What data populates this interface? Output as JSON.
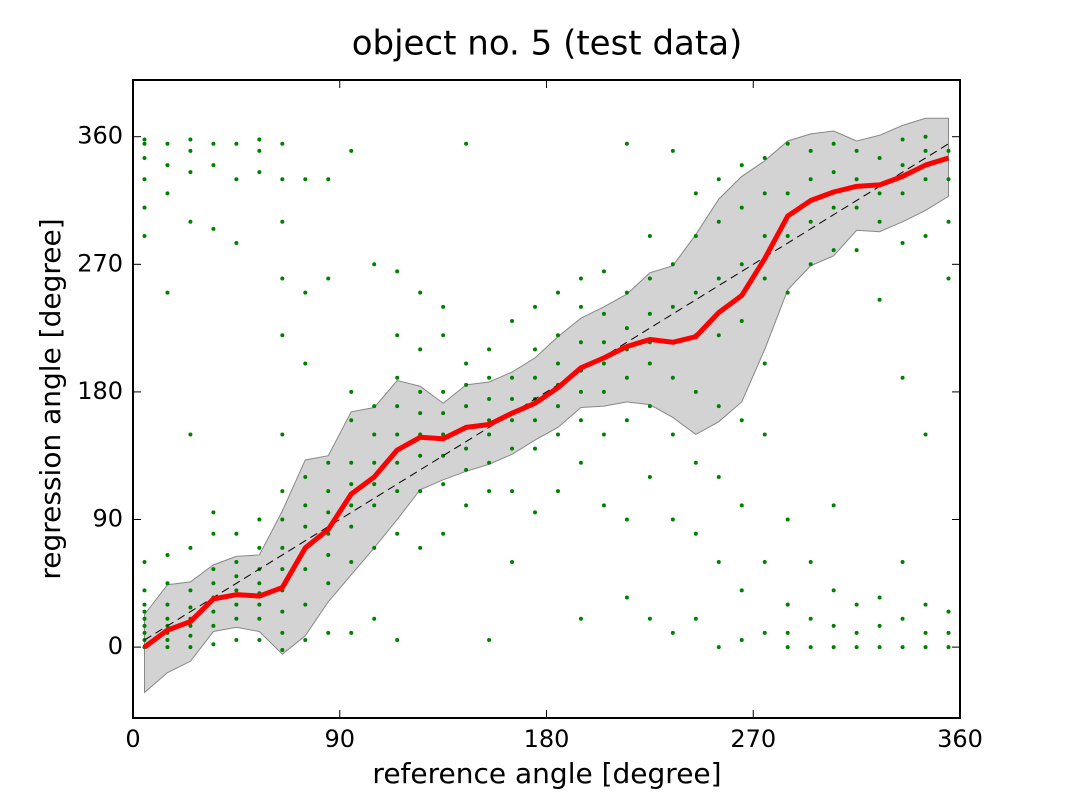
{
  "chart_data": {
    "type": "scatter",
    "title": "object no. 5 (test data)",
    "xlabel": "reference angle [degree]",
    "ylabel": "regression angle [degree]",
    "xlim": [
      0,
      360
    ],
    "ylim": [
      -50,
      400
    ],
    "xticks": [
      0,
      90,
      180,
      270,
      360
    ],
    "yticks": [
      0,
      90,
      180,
      270,
      360
    ],
    "diagonal": true,
    "x": [
      5,
      15,
      25,
      35,
      45,
      55,
      65,
      75,
      85,
      95,
      105,
      115,
      125,
      135,
      145,
      155,
      165,
      175,
      185,
      195,
      205,
      215,
      225,
      235,
      245,
      255,
      265,
      275,
      285,
      295,
      305,
      315,
      325,
      335,
      345,
      355
    ],
    "point_color": "#008000",
    "scatter_y": [
      [
        0,
        5,
        10,
        15,
        20,
        25,
        30,
        40,
        60,
        290,
        310,
        330,
        345,
        355,
        358
      ],
      [
        0,
        5,
        10,
        15,
        20,
        30,
        45,
        65,
        250,
        320,
        340,
        355
      ],
      [
        0,
        8,
        15,
        20,
        28,
        40,
        70,
        150,
        300,
        335,
        350,
        358
      ],
      [
        2,
        15,
        25,
        35,
        45,
        55,
        80,
        95,
        295,
        340,
        355
      ],
      [
        5,
        20,
        30,
        40,
        50,
        60,
        80,
        285,
        330,
        355
      ],
      [
        5,
        20,
        30,
        38,
        45,
        55,
        70,
        90,
        335,
        350,
        358
      ],
      [
        -2,
        10,
        25,
        40,
        55,
        70,
        90,
        110,
        150,
        220,
        260,
        300,
        330,
        355
      ],
      [
        5,
        30,
        55,
        70,
        85,
        100,
        120,
        200,
        250,
        330
      ],
      [
        10,
        45,
        65,
        80,
        95,
        110,
        130,
        260,
        330
      ],
      [
        10,
        60,
        85,
        100,
        115,
        130,
        160,
        180,
        350
      ],
      [
        20,
        70,
        100,
        115,
        130,
        150,
        170,
        270
      ],
      [
        5,
        80,
        110,
        130,
        150,
        170,
        190,
        220,
        265
      ],
      [
        70,
        110,
        135,
        150,
        165,
        180,
        210,
        250
      ],
      [
        80,
        115,
        135,
        150,
        165,
        180,
        220,
        240
      ],
      [
        100,
        125,
        140,
        155,
        170,
        185,
        200,
        355
      ],
      [
        5,
        110,
        130,
        150,
        160,
        175,
        190,
        210
      ],
      [
        60,
        110,
        140,
        160,
        175,
        190,
        230
      ],
      [
        95,
        140,
        160,
        175,
        190,
        210,
        240
      ],
      [
        110,
        150,
        170,
        185,
        200,
        220,
        250
      ],
      [
        20,
        130,
        160,
        180,
        195,
        215,
        240,
        260
      ],
      [
        100,
        150,
        180,
        200,
        215,
        235,
        265
      ],
      [
        35,
        90,
        160,
        190,
        210,
        225,
        250,
        355
      ],
      [
        20,
        120,
        170,
        200,
        215,
        235,
        260,
        290
      ],
      [
        10,
        90,
        150,
        190,
        215,
        240,
        270,
        350
      ],
      [
        20,
        80,
        130,
        180,
        220,
        250,
        290,
        320
      ],
      [
        0,
        60,
        120,
        170,
        220,
        260,
        300,
        330
      ],
      [
        5,
        40,
        100,
        160,
        230,
        270,
        310,
        340
      ],
      [
        10,
        60,
        150,
        200,
        260,
        290,
        320,
        345
      ],
      [
        0,
        10,
        30,
        90,
        250,
        290,
        320,
        355
      ],
      [
        0,
        20,
        60,
        270,
        300,
        330,
        350
      ],
      [
        0,
        15,
        40,
        100,
        280,
        310,
        335,
        355
      ],
      [
        0,
        10,
        30,
        280,
        310,
        330,
        350
      ],
      [
        0,
        15,
        35,
        245,
        300,
        320,
        345
      ],
      [
        0,
        20,
        60,
        190,
        285,
        320,
        340,
        358
      ],
      [
        0,
        10,
        30,
        150,
        290,
        330,
        350,
        360
      ],
      [
        0,
        10,
        25,
        260,
        300,
        330,
        350
      ]
    ],
    "mean": {
      "color": "#ff0000",
      "values": [
        0,
        12,
        18,
        34,
        37,
        36,
        42,
        70,
        83,
        108,
        120,
        139,
        148,
        147,
        155,
        157,
        165,
        172,
        183,
        197,
        204,
        212,
        217,
        215,
        219,
        236,
        248,
        274,
        304,
        315,
        321,
        325,
        326,
        332,
        340,
        345
      ]
    },
    "band": {
      "color": "#d3d3d3",
      "upper": [
        23,
        44,
        46,
        58,
        64,
        65,
        96,
        132,
        135,
        166,
        169,
        188,
        184,
        172,
        185,
        187,
        194,
        204,
        219,
        232,
        240,
        249,
        264,
        269,
        291,
        316,
        332,
        343,
        357,
        362,
        364,
        357,
        361,
        368,
        373,
        373
      ],
      "lower": [
        -32,
        -18,
        -10,
        11,
        14,
        11,
        -5,
        8,
        32,
        51,
        70,
        90,
        111,
        118,
        124,
        129,
        136,
        146,
        155,
        169,
        170,
        173,
        171,
        162,
        150,
        159,
        173,
        210,
        252,
        269,
        276,
        294,
        293,
        300,
        308,
        318
      ]
    }
  }
}
